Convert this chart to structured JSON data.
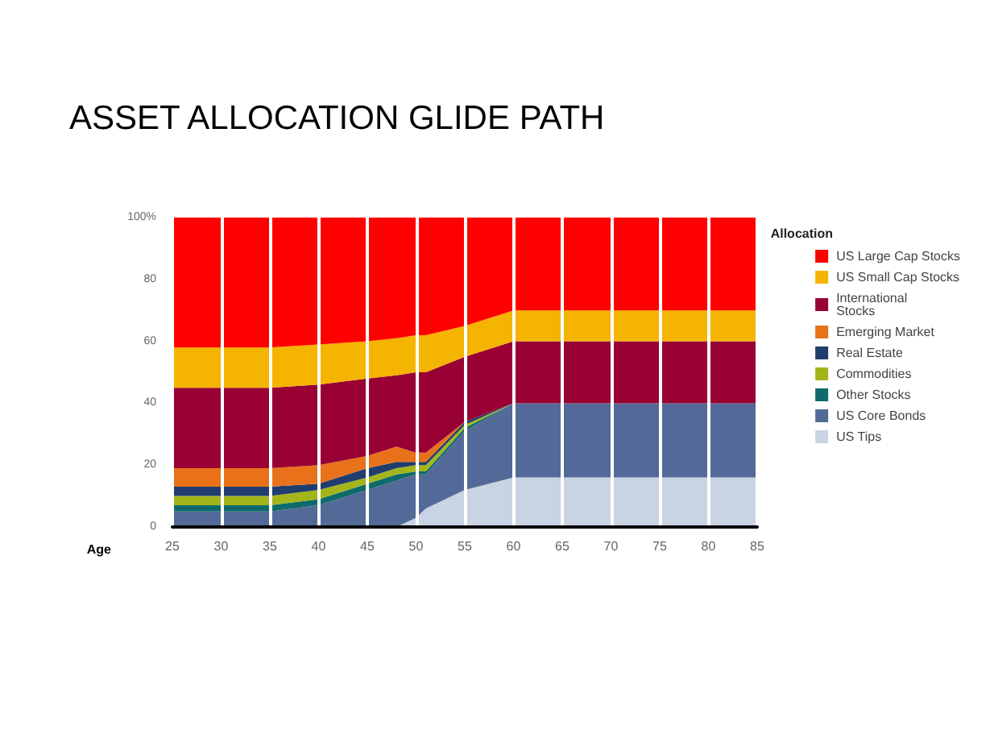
{
  "chart_data": {
    "type": "area",
    "title": "ASSET ALLOCATION GLIDE PATH",
    "xlabel": "Age",
    "legend_title": "Allocation",
    "stacked": true,
    "x": [
      25,
      30,
      35,
      40,
      45,
      48,
      50,
      51,
      55,
      60,
      65,
      70,
      75,
      80,
      85
    ],
    "series": [
      {
        "name": "US Tips",
        "color": "#c8d3e3",
        "values": [
          0,
          0,
          0,
          0,
          0,
          0,
          3,
          6,
          12,
          16,
          16,
          16,
          16,
          16,
          16
        ]
      },
      {
        "name": "US Core Bonds",
        "color": "#536a98",
        "values": [
          5,
          5,
          5,
          7,
          12,
          15,
          14,
          11,
          19,
          24,
          24,
          24,
          24,
          24,
          24
        ]
      },
      {
        "name": "Other Stocks",
        "color": "#0f6b6b",
        "values": [
          2,
          2,
          2,
          2,
          2,
          2,
          1,
          1,
          1,
          0,
          0,
          0,
          0,
          0,
          0
        ]
      },
      {
        "name": "Commodities",
        "color": "#a3b51a",
        "values": [
          3,
          3,
          3,
          3,
          2,
          2,
          2,
          2,
          1,
          0,
          0,
          0,
          0,
          0,
          0
        ]
      },
      {
        "name": "Real Estate",
        "color": "#1f3d6e",
        "values": [
          3,
          3,
          3,
          2,
          3,
          2,
          1,
          1,
          1,
          0,
          0,
          0,
          0,
          0,
          0
        ]
      },
      {
        "name": "Emerging Market",
        "color": "#e8711a",
        "values": [
          6,
          6,
          6,
          6,
          4,
          5,
          3,
          3,
          0,
          0,
          0,
          0,
          0,
          0,
          0
        ]
      },
      {
        "name": "International\nStocks",
        "color": "#990033",
        "values": [
          26,
          26,
          26,
          26,
          25,
          23,
          26,
          26,
          21,
          20,
          20,
          20,
          20,
          20,
          20
        ]
      },
      {
        "name": "US Small Cap Stocks",
        "color": "#f5b400",
        "values": [
          13,
          13,
          13,
          13,
          12,
          12,
          12,
          12,
          10,
          10,
          10,
          10,
          10,
          10,
          10
        ]
      },
      {
        "name": "US Large Cap Stocks",
        "color": "#ff0000",
        "values": [
          42,
          42,
          42,
          41,
          40,
          39,
          38,
          38,
          35,
          30,
          30,
          30,
          30,
          30,
          30
        ]
      }
    ],
    "xlim": [
      25,
      85
    ],
    "xticks": [
      25,
      30,
      35,
      40,
      45,
      50,
      55,
      60,
      65,
      70,
      75,
      80,
      85
    ],
    "ylim": [
      0,
      100
    ],
    "yticks": [
      0,
      20,
      40,
      60,
      80,
      {
        "value": 100,
        "label": "100%"
      }
    ],
    "grid": "x",
    "legend": "right",
    "marker": "none"
  }
}
